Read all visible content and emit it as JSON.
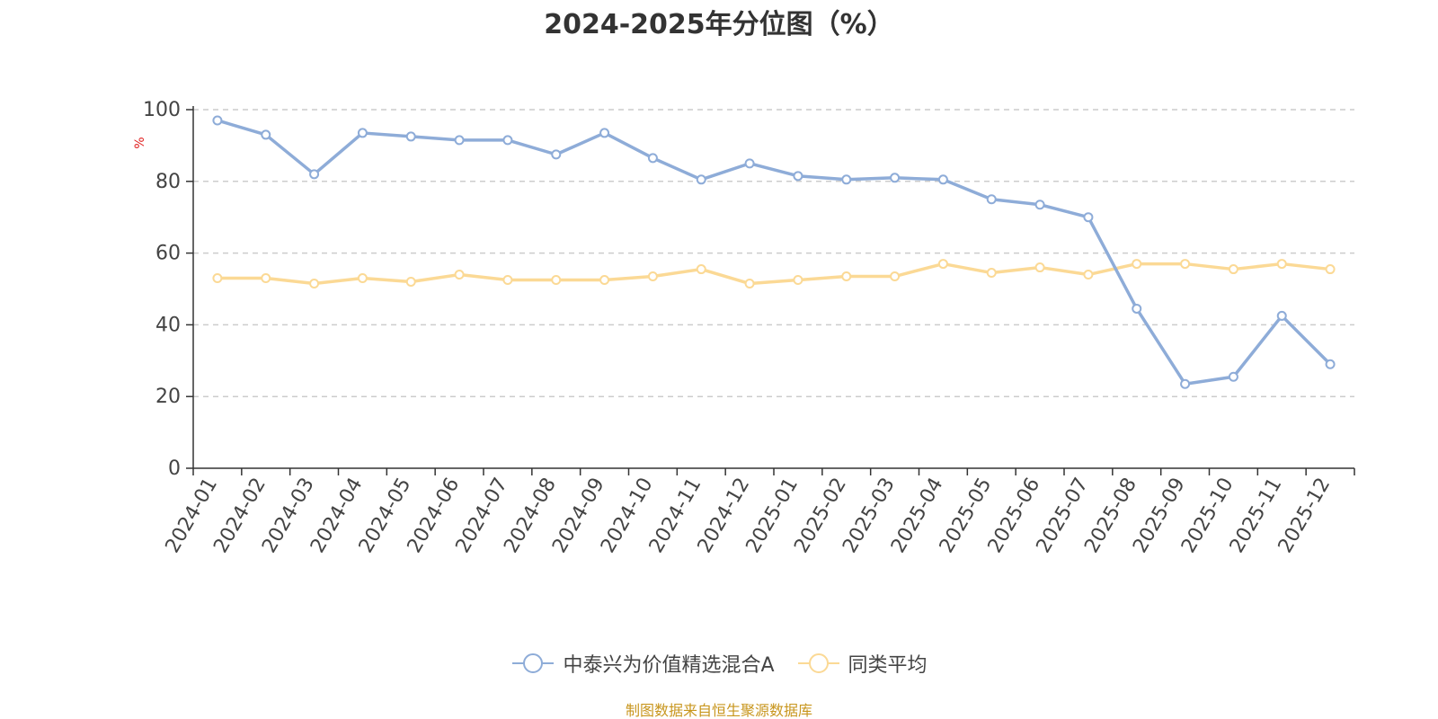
{
  "chart_data": {
    "type": "line",
    "title": "2024-2025年分位图（%）",
    "ylabel": "%",
    "ylim": [
      0,
      100
    ],
    "yticks": [
      0,
      20,
      40,
      60,
      80,
      100
    ],
    "grid": true,
    "legend_position": "bottom",
    "categories": [
      "2024-01",
      "2024-02",
      "2024-03",
      "2024-04",
      "2024-05",
      "2024-06",
      "2024-07",
      "2024-08",
      "2024-09",
      "2024-10",
      "2024-11",
      "2024-12",
      "2025-01",
      "2025-02",
      "2025-03",
      "2025-04",
      "2025-05",
      "2025-06",
      "2025-07",
      "2025-08",
      "2025-09",
      "2025-10",
      "2025-11",
      "2025-12"
    ],
    "series": [
      {
        "name": "中泰兴为价值精选混合A",
        "color": "#8eacd8",
        "values": [
          97,
          93,
          82,
          93.5,
          92.5,
          91.5,
          91.5,
          87.5,
          93.5,
          86.5,
          80.5,
          85,
          81.5,
          80.5,
          81,
          80.5,
          75,
          73.5,
          70,
          44.5,
          23.5,
          25.5,
          42.5,
          29
        ]
      },
      {
        "name": "同类平均",
        "color": "#fbd995",
        "values": [
          53,
          53,
          51.5,
          53,
          52,
          54,
          52.5,
          52.5,
          52.5,
          53.5,
          55.5,
          51.5,
          52.5,
          53.5,
          53.5,
          57,
          54.5,
          56,
          54,
          57,
          57,
          55.5,
          57,
          55.5
        ]
      }
    ]
  },
  "source_note": "制图数据来自恒生聚源数据库"
}
